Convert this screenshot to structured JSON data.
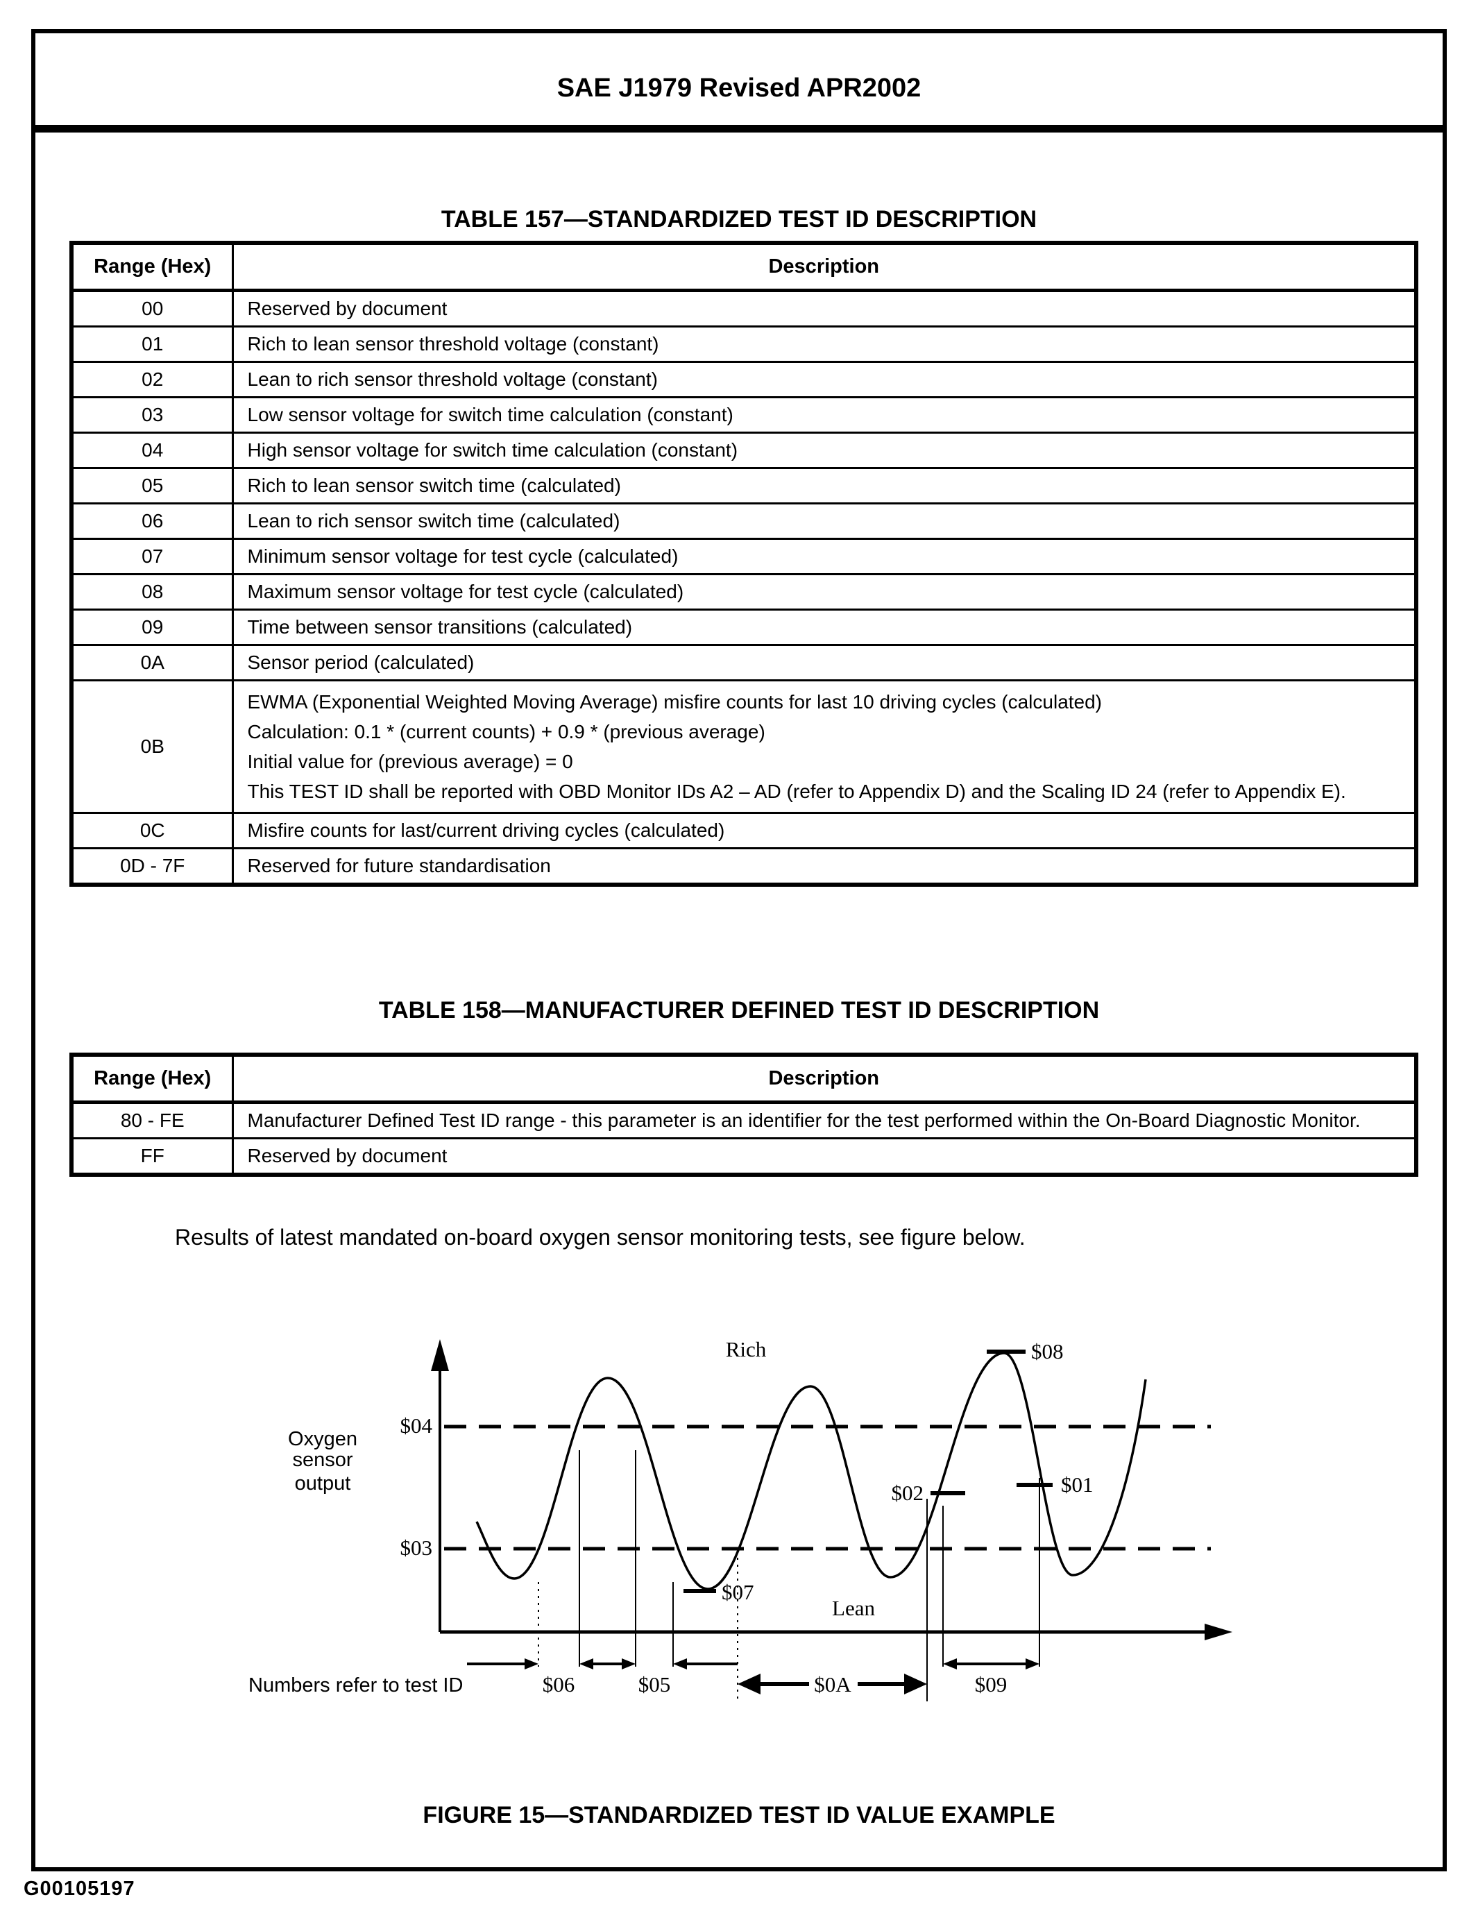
{
  "header": {
    "title": "SAE J1979 Revised APR2002"
  },
  "footer": {
    "code": "G00105197"
  },
  "table157": {
    "title": "TABLE 157—STANDARDIZED TEST ID DESCRIPTION",
    "col_range": "Range (Hex)",
    "col_description": "Description",
    "rows": [
      {
        "range": "00",
        "desc": "Reserved by document"
      },
      {
        "range": "01",
        "desc": "Rich to lean sensor threshold voltage (constant)"
      },
      {
        "range": "02",
        "desc": "Lean to rich sensor threshold voltage (constant)"
      },
      {
        "range": "03",
        "desc": "Low sensor voltage for switch time calculation (constant)"
      },
      {
        "range": "04",
        "desc": "High sensor voltage for switch time calculation (constant)"
      },
      {
        "range": "05",
        "desc": "Rich to lean sensor switch time (calculated)"
      },
      {
        "range": "06",
        "desc": "Lean to rich sensor switch time (calculated)"
      },
      {
        "range": "07",
        "desc": "Minimum sensor voltage for test cycle (calculated)"
      },
      {
        "range": "08",
        "desc": "Maximum sensor voltage for test cycle (calculated)"
      },
      {
        "range": "09",
        "desc": "Time between sensor transitions (calculated)"
      },
      {
        "range": "0A",
        "desc": "Sensor period (calculated)"
      },
      {
        "range": "0B",
        "lines": [
          "EWMA (Exponential Weighted Moving Average) misfire counts for last 10 driving cycles (calculated)",
          "Calculation: 0.1 * (current counts) + 0.9 * (previous average)",
          "Initial value for (previous average) = 0",
          "This TEST ID shall be reported with OBD Monitor IDs A2 – AD (refer to Appendix D) and the Scaling ID 24 (refer to Appendix E)."
        ]
      },
      {
        "range": "0C",
        "desc": "Misfire counts for last/current driving cycles (calculated)"
      },
      {
        "range": "0D - 7F",
        "desc": "Reserved for future standardisation"
      }
    ]
  },
  "table158": {
    "title": "TABLE 158—MANUFACTURER DEFINED TEST ID DESCRIPTION",
    "col_range": "Range (Hex)",
    "col_description": "Description",
    "rows": [
      {
        "range": "80 - FE",
        "desc": "Manufacturer Defined Test ID range - this parameter is an identifier for the test performed within the On-Board Diagnostic Monitor."
      },
      {
        "range": "FF",
        "desc": "Reserved by document"
      }
    ]
  },
  "body_text": {
    "results_note": "Results of latest mandated on-board oxygen sensor monitoring tests, see figure below."
  },
  "figure": {
    "caption": "FIGURE 15—STANDARDIZED TEST ID VALUE EXAMPLE",
    "note": "Numbers refer to test ID",
    "y_axis_label": [
      "Oxygen",
      "sensor",
      "output"
    ],
    "region_labels": {
      "rich": "Rich",
      "lean": "Lean"
    },
    "test_id_labels": {
      "s01": "$01",
      "s02": "$02",
      "s03": "$03",
      "s04": "$04",
      "s05": "$05",
      "s06": "$06",
      "s07": "$07",
      "s08": "$08",
      "s09": "$09",
      "s0A": "$0A"
    }
  }
}
